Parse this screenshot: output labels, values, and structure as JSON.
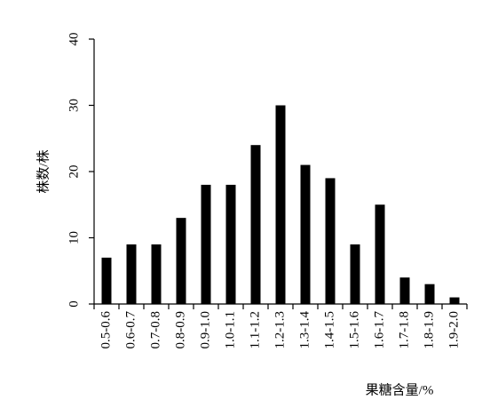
{
  "chart_data": {
    "type": "bar",
    "y_label": "株数/株",
    "x_label": "果糖含量/%",
    "categories": [
      "0.5-0.6",
      "0.6-0.7",
      "0.7-0.8",
      "0.8-0.9",
      "0.9-1.0",
      "1.0-1.1",
      "1.1-1.2",
      "1.2-1.3",
      "1.3-1.4",
      "1.4-1.5",
      "1.5-1.6",
      "1.6-1.7",
      "1.7-1.8",
      "1.8-1.9",
      "1.9-2.0"
    ],
    "values": [
      7,
      9,
      9,
      13,
      18,
      18,
      24,
      30,
      21,
      19,
      9,
      15,
      4,
      3,
      1
    ],
    "color": "#000000",
    "ylim": [
      0,
      40
    ],
    "yticks": [
      0,
      10,
      20,
      30,
      40
    ],
    "grid": false
  }
}
